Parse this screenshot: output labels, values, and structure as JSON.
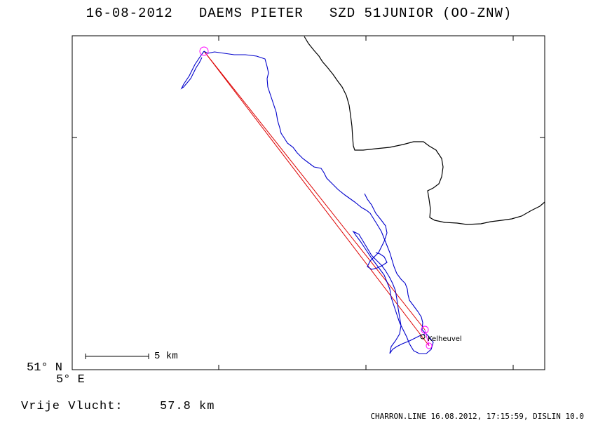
{
  "title": "16-08-2012   DAEMS PIETER   SZD 51JUNIOR (OO-ZNW)",
  "corner": {
    "lat": "51° N",
    "lon": "5° E"
  },
  "scale_bar": {
    "label": "5 km"
  },
  "place": {
    "name": "Kelheuvel"
  },
  "flight": {
    "label": "Vrije Vlucht:",
    "value": "57.8 km"
  },
  "footer": "CHARRON.LINE 16.08.2012, 17:15:59, DISLIN 10.0",
  "colors": {
    "track": "#0000cc",
    "task_line": "#dd0000",
    "marker": "#ff00ff",
    "coast": "#000000",
    "frame": "#000000"
  }
}
